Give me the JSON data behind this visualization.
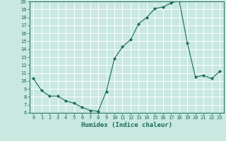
{
  "x": [
    0,
    1,
    2,
    3,
    4,
    5,
    6,
    7,
    8,
    9,
    10,
    11,
    12,
    13,
    14,
    15,
    16,
    17,
    18,
    19,
    20,
    21,
    22,
    23
  ],
  "y": [
    10.3,
    8.8,
    8.1,
    8.1,
    7.5,
    7.2,
    6.7,
    6.3,
    6.2,
    8.7,
    12.8,
    14.3,
    15.2,
    17.2,
    18.0,
    19.1,
    19.3,
    19.8,
    20.1,
    14.8,
    10.5,
    10.7,
    10.3,
    11.2
  ],
  "xlabel": "Humidex (Indice chaleur)",
  "xlim": [
    -0.5,
    23.5
  ],
  "ylim": [
    6,
    20
  ],
  "yticks": [
    6,
    7,
    8,
    9,
    10,
    11,
    12,
    13,
    14,
    15,
    16,
    17,
    18,
    19,
    20
  ],
  "xticks": [
    0,
    1,
    2,
    3,
    4,
    5,
    6,
    7,
    8,
    9,
    10,
    11,
    12,
    13,
    14,
    15,
    16,
    17,
    18,
    19,
    20,
    21,
    22,
    23
  ],
  "line_color": "#1a6b5a",
  "marker": "D",
  "markersize": 2.0,
  "bg_color": "#c8e8e0",
  "grid_color": "#ffffff",
  "tick_color": "#1a6b5a",
  "label_color": "#1a6b5a"
}
